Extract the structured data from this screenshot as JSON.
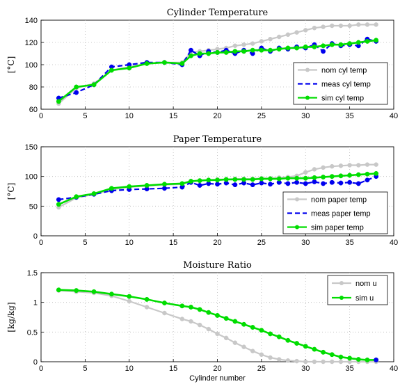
{
  "chart_data": [
    {
      "type": "line",
      "title": "Cylinder Temperature",
      "xlabel": "",
      "ylabel": "[°C]",
      "xlim": [
        0,
        40
      ],
      "ylim": [
        60,
        140
      ],
      "xticks": [
        "0",
        "5",
        "10",
        "15",
        "20",
        "25",
        "30",
        "35",
        "40"
      ],
      "yticks": [
        "60",
        "80",
        "100",
        "120",
        "140"
      ],
      "grid": true,
      "legend_position": "lower-right",
      "series": [
        {
          "name": "nom cyl temp",
          "color": "#c8c8c8",
          "style": "solid-marker",
          "x": [
            2,
            4,
            6,
            8,
            10,
            12,
            14,
            16,
            17,
            18,
            19,
            20,
            21,
            22,
            23,
            24,
            25,
            26,
            27,
            28,
            29,
            30,
            31,
            32,
            33,
            34,
            35,
            36,
            37,
            38
          ],
          "y": [
            65,
            79,
            83,
            95,
            98,
            101,
            102,
            102,
            111,
            112,
            113,
            114,
            115,
            117,
            118,
            119,
            121,
            123,
            125,
            127,
            129,
            131,
            133,
            134,
            135,
            135,
            135,
            136,
            136,
            136
          ]
        },
        {
          "name": "meas cyl temp",
          "color": "#0000ee",
          "style": "dashed-marker",
          "x": [
            2,
            4,
            6,
            8,
            10,
            12,
            14,
            16,
            17,
            18,
            19,
            20,
            21,
            22,
            23,
            24,
            25,
            26,
            27,
            28,
            29,
            30,
            31,
            32,
            33,
            34,
            35,
            36,
            37,
            38
          ],
          "y": [
            70,
            75,
            82,
            98,
            100,
            102,
            102,
            100,
            113,
            108,
            112,
            111,
            113,
            110,
            113,
            110,
            115,
            112,
            115,
            114,
            116,
            115,
            118,
            112,
            119,
            117,
            118,
            117,
            123,
            121
          ]
        },
        {
          "name": "sim cyl temp",
          "color": "#00dd00",
          "style": "solid-marker",
          "x": [
            2,
            4,
            6,
            8,
            10,
            12,
            14,
            16,
            17,
            18,
            19,
            20,
            21,
            22,
            23,
            24,
            25,
            26,
            27,
            28,
            29,
            30,
            31,
            32,
            33,
            34,
            35,
            36,
            37,
            38
          ],
          "y": [
            67,
            80,
            82,
            95,
            97,
            101,
            102,
            101,
            108,
            110,
            110,
            111,
            111,
            112,
            112,
            113,
            113,
            113,
            114,
            115,
            115,
            116,
            116,
            117,
            118,
            118,
            119,
            120,
            121,
            122
          ]
        }
      ]
    },
    {
      "type": "line",
      "title": "Paper Temperature",
      "xlabel": "",
      "ylabel": "[°C]",
      "xlim": [
        0,
        40
      ],
      "ylim": [
        0,
        150
      ],
      "xticks": [
        "0",
        "5",
        "10",
        "15",
        "20",
        "25",
        "30",
        "35",
        "40"
      ],
      "yticks": [
        "0",
        "50",
        "100",
        "150"
      ],
      "grid": true,
      "legend_position": "lower-right",
      "series": [
        {
          "name": "nom paper temp",
          "color": "#c8c8c8",
          "style": "solid-marker",
          "x": [
            2,
            4,
            6,
            8,
            10,
            12,
            14,
            16,
            17,
            18,
            19,
            20,
            21,
            22,
            23,
            24,
            25,
            26,
            27,
            28,
            29,
            30,
            31,
            32,
            33,
            34,
            35,
            36,
            37,
            38
          ],
          "y": [
            48,
            64,
            70,
            78,
            82,
            84,
            86,
            87,
            92,
            93,
            94,
            95,
            95,
            96,
            96,
            96,
            97,
            97,
            98,
            99,
            101,
            107,
            112,
            115,
            117,
            118,
            119,
            119,
            120,
            120
          ]
        },
        {
          "name": "meas paper temp",
          "color": "#0000ee",
          "style": "dashed-marker",
          "x": [
            2,
            4,
            6,
            8,
            10,
            12,
            14,
            16,
            17,
            18,
            19,
            20,
            21,
            22,
            23,
            24,
            25,
            26,
            27,
            28,
            29,
            30,
            31,
            32,
            33,
            34,
            35,
            36,
            37,
            38
          ],
          "y": [
            61,
            65,
            70,
            76,
            78,
            79,
            80,
            82,
            90,
            85,
            88,
            87,
            89,
            86,
            89,
            86,
            89,
            87,
            90,
            88,
            90,
            88,
            91,
            88,
            90,
            89,
            90,
            88,
            94,
            100
          ]
        },
        {
          "name": "sim paper temp",
          "color": "#00dd00",
          "style": "solid-marker",
          "x": [
            2,
            4,
            6,
            8,
            10,
            12,
            14,
            16,
            17,
            18,
            19,
            20,
            21,
            22,
            23,
            24,
            25,
            26,
            27,
            28,
            29,
            30,
            31,
            32,
            33,
            34,
            35,
            36,
            37,
            38
          ],
          "y": [
            53,
            66,
            71,
            80,
            83,
            85,
            87,
            88,
            92,
            93,
            94,
            94,
            95,
            95,
            95,
            95,
            96,
            96,
            96,
            97,
            97,
            97,
            98,
            99,
            100,
            101,
            102,
            103,
            104,
            105
          ]
        }
      ]
    },
    {
      "type": "line",
      "title": "Moisture Ratio",
      "xlabel": "Cylinder number",
      "ylabel": "[kg/kg]",
      "xlim": [
        0,
        40
      ],
      "ylim": [
        0,
        1.5
      ],
      "xticks": [
        "0",
        "5",
        "10",
        "15",
        "20",
        "25",
        "30",
        "35",
        "40"
      ],
      "yticks": [
        "0",
        "0.5",
        "1",
        "1.5"
      ],
      "grid": true,
      "legend_position": "top-right",
      "series": [
        {
          "name": "nom u",
          "color": "#c8c8c8",
          "style": "solid-marker",
          "x": [
            2,
            4,
            6,
            8,
            10,
            12,
            14,
            16,
            17,
            18,
            19,
            20,
            21,
            22,
            23,
            24,
            25,
            26,
            27,
            28,
            29,
            30,
            31,
            32,
            33,
            34,
            35,
            36,
            37,
            38
          ],
          "y": [
            1.2,
            1.18,
            1.16,
            1.11,
            1.02,
            0.92,
            0.82,
            0.72,
            0.68,
            0.62,
            0.55,
            0.47,
            0.4,
            0.32,
            0.25,
            0.18,
            0.12,
            0.07,
            0.04,
            0.02,
            0.01,
            0.0,
            0.0,
            0.0,
            0.0,
            0.0,
            0.0,
            0.0,
            0.0,
            0.0
          ]
        },
        {
          "name": "sim u",
          "color": "#00dd00",
          "style": "solid-marker",
          "x": [
            2,
            4,
            6,
            8,
            10,
            12,
            14,
            16,
            17,
            18,
            19,
            20,
            21,
            22,
            23,
            24,
            25,
            26,
            27,
            28,
            29,
            30,
            31,
            32,
            33,
            34,
            35,
            36,
            37,
            38
          ],
          "y": [
            1.21,
            1.2,
            1.18,
            1.14,
            1.1,
            1.05,
            0.99,
            0.94,
            0.92,
            0.88,
            0.83,
            0.78,
            0.73,
            0.68,
            0.63,
            0.58,
            0.53,
            0.47,
            0.42,
            0.36,
            0.31,
            0.26,
            0.21,
            0.16,
            0.12,
            0.08,
            0.06,
            0.04,
            0.03,
            0.03
          ]
        },
        {
          "name": "",
          "color": "#0000ee",
          "style": "marker-only",
          "x": [
            38
          ],
          "y": [
            0.03
          ]
        }
      ]
    }
  ]
}
